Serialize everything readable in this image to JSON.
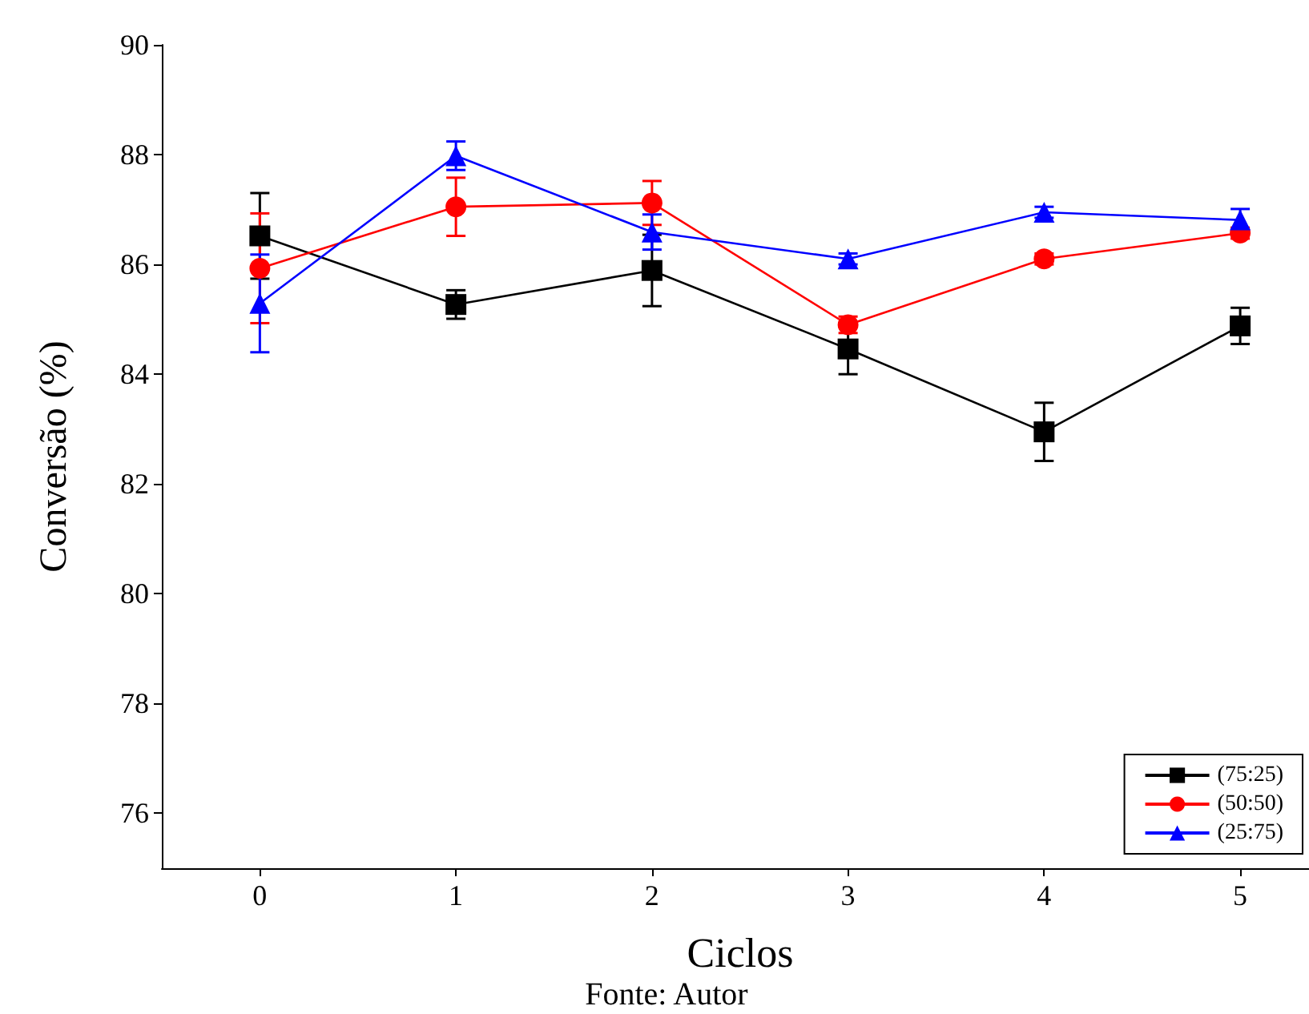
{
  "chart_data": {
    "type": "line",
    "xlabel": "Ciclos",
    "ylabel": "Conversão (%)",
    "x": [
      0,
      1,
      2,
      3,
      4,
      5
    ],
    "xlim": [
      -0.5,
      5.4
    ],
    "xticks": [
      0,
      1,
      2,
      3,
      4,
      5
    ],
    "ylim": [
      75,
      90
    ],
    "yticks": [
      76,
      78,
      80,
      82,
      84,
      86,
      88,
      90
    ],
    "grid": false,
    "legend": "bottom right",
    "line_style": "solid",
    "annotations": [
      "Fonte: Autor"
    ],
    "series": [
      {
        "name": "(75:25)",
        "color": "#000000",
        "marker": "square",
        "values": [
          86.52,
          85.27,
          85.89,
          84.46,
          82.95,
          84.88
        ],
        "errors": [
          0.78,
          0.26,
          0.65,
          0.46,
          0.53,
          0.33
        ]
      },
      {
        "name": "(50:50)",
        "color": "#ff0000",
        "marker": "circle",
        "values": [
          85.93,
          87.05,
          87.12,
          84.9,
          86.1,
          86.57
        ],
        "errors": [
          1.0,
          0.53,
          0.4,
          0.15,
          0.1,
          0.1
        ]
      },
      {
        "name": "(25:75)",
        "color": "#0000ff",
        "marker": "triangle",
        "values": [
          85.29,
          87.98,
          86.59,
          86.1,
          86.95,
          86.81
        ],
        "errors": [
          0.89,
          0.26,
          0.32,
          0.1,
          0.1,
          0.2
        ]
      }
    ]
  }
}
